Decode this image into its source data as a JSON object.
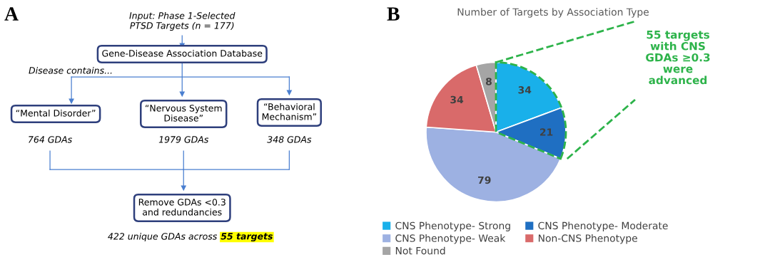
{
  "chart_data": [
    {
      "type": "other",
      "title": "A",
      "annotations": [
        "Input: Phase 1-Selected\nPTSD Targets (n = 177)",
        "Gene-Disease Association Database",
        "Disease contains...",
        "“Mental Disorder”",
        "“Nervous System\nDisease”",
        "“Behavioral\nMechanism”",
        "764 GDAs",
        "1979 GDAs",
        "348 GDAs",
        "Remove GDAs <0.3\nand redundancies",
        "422 unique GDAs across",
        "55 targets"
      ]
    },
    {
      "type": "pie",
      "title": "Number of Targets by Association Type",
      "categories": [
        "CNS Phenotype- Strong",
        "CNS Phenotype- Moderate",
        "CNS Phenotype- Weak",
        "Non-CNS Phenotype",
        "Not Found"
      ],
      "values": [
        34,
        21,
        79,
        34,
        8
      ],
      "colors": [
        "#19b0ea",
        "#1f6fc2",
        "#9db1e2",
        "#d96a6a",
        "#a5a5a5"
      ],
      "data_labels": true,
      "legend": "bottom",
      "annotations": [
        "B",
        "55 targets\nwith CNS\nGDAs ≥0.3\nwere\nadvanced"
      ]
    }
  ]
}
